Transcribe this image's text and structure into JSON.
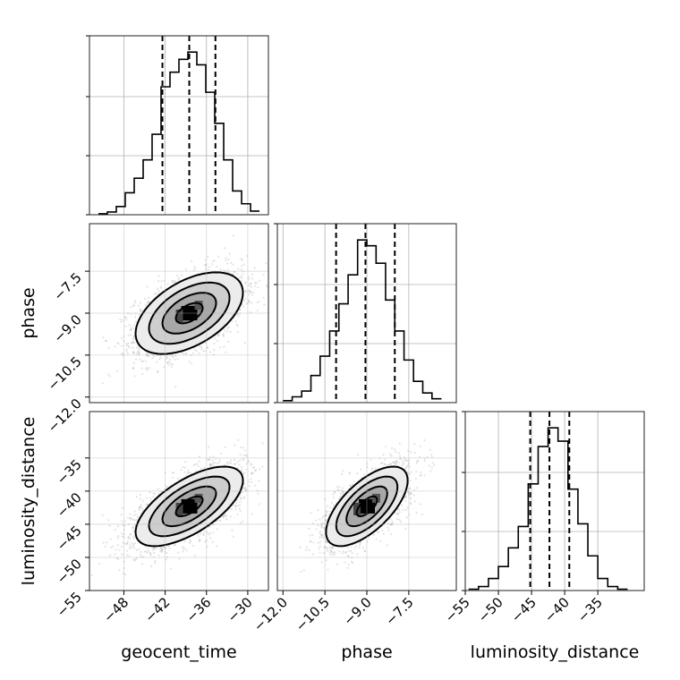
{
  "chart_data": {
    "type": "corner",
    "parameters": [
      "geocent_time",
      "phase",
      "luminosity_distance"
    ],
    "axes": {
      "geocent_time": {
        "label": "geocent_time",
        "range": [
          -53,
          -27
        ],
        "ticks": [
          -48,
          -42,
          -36,
          -30
        ],
        "tick_labels": [
          "−48",
          "−42",
          "−36",
          "−30"
        ]
      },
      "phase": {
        "label": "phase",
        "range": [
          -12.2,
          -5.8
        ],
        "ticks": [
          -12.0,
          -10.5,
          -9.0,
          -7.5
        ],
        "tick_labels": [
          "−12.0",
          "−10.5",
          "−9.0",
          "−7.5"
        ]
      },
      "luminosity_distance": {
        "label": "luminosity_distance",
        "range": [
          -55,
          -28
        ],
        "ticks": [
          -55,
          -50,
          -45,
          -40,
          -35
        ],
        "tick_labels": [
          "−55",
          "−50",
          "−45",
          "−40",
          "−35"
        ]
      }
    },
    "histograms": [
      {
        "parameter": "geocent_time",
        "bin_edges": [
          -51.7,
          -50.4,
          -49.1,
          -47.8,
          -46.5,
          -45.2,
          -43.9,
          -42.6,
          -41.3,
          -40.0,
          -38.7,
          -37.4,
          -36.1,
          -34.8,
          -33.5,
          -32.2,
          -30.9,
          -29.6,
          -28.3
        ],
        "counts": [
          0.5,
          1.5,
          4.5,
          12,
          20,
          30,
          44,
          70,
          78,
          85,
          89,
          82,
          67,
          50,
          30,
          13,
          6,
          2
        ],
        "quantiles": [
          -42.4,
          -38.5,
          -34.7
        ]
      },
      {
        "parameter": "phase",
        "bin_edges": [
          -12.0,
          -11.67,
          -11.33,
          -11.0,
          -10.67,
          -10.33,
          -10.0,
          -9.67,
          -9.33,
          -9.0,
          -8.67,
          -8.33,
          -8.0,
          -7.67,
          -7.33,
          -7.0,
          -6.67,
          -6.33
        ],
        "counts": [
          1,
          3,
          6,
          14,
          24,
          37,
          51,
          66,
          84,
          81,
          72,
          53,
          37,
          22,
          11,
          5,
          2
        ],
        "quantiles": [
          -10.1,
          -9.05,
          -8.0
        ]
      },
      {
        "parameter": "luminosity_distance",
        "bin_edges": [
          -54.5,
          -53.0,
          -51.5,
          -50.0,
          -48.5,
          -47.0,
          -45.5,
          -44.0,
          -42.5,
          -41.0,
          -39.5,
          -38.0,
          -36.5,
          -35.0,
          -33.5,
          -32.0,
          -30.5
        ],
        "counts": [
          0.5,
          1.5,
          4.5,
          9,
          16,
          24,
          40,
          54,
          61,
          56,
          38,
          25,
          13,
          4.5,
          1.5,
          0.5
        ],
        "quantiles": [
          -45.2,
          -42.3,
          -39.3
        ]
      }
    ],
    "joint": [
      {
        "x": "geocent_time",
        "y": "phase",
        "mean": [
          -38.5,
          -9.0
        ],
        "std": [
          3.9,
          0.73
        ],
        "correlation": 0.5,
        "contour_levels": [
          0.5,
          1.0,
          1.5,
          2.0
        ]
      },
      {
        "x": "geocent_time",
        "y": "luminosity_distance",
        "mean": [
          -38.5,
          -42.3
        ],
        "std": [
          3.9,
          3.0
        ],
        "correlation": 0.65,
        "contour_levels": [
          0.5,
          1.0,
          1.5,
          2.0
        ]
      },
      {
        "x": "phase",
        "y": "luminosity_distance",
        "mean": [
          -9.0,
          -42.3
        ],
        "std": [
          0.73,
          3.0
        ],
        "correlation": 0.65,
        "contour_levels": [
          0.5,
          1.0,
          1.5,
          2.0
        ]
      }
    ],
    "grid": true,
    "line_color": "#000000",
    "scatter_color": "#9a9a9a"
  }
}
